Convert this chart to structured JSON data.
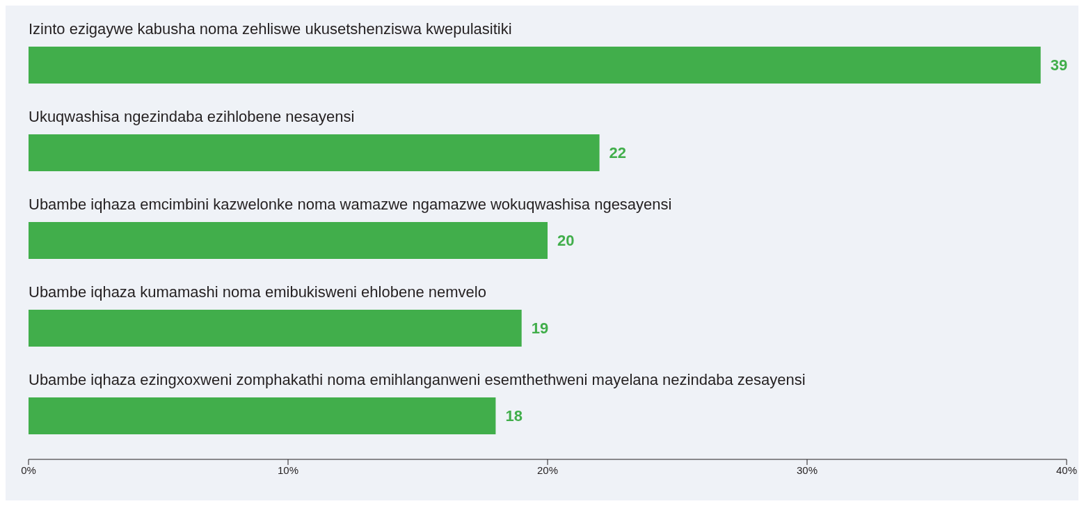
{
  "chart_data": {
    "type": "bar",
    "orientation": "horizontal",
    "categories": [
      "Izinto ezigaywe kabusha noma zehliswe ukusetshenziswa kwepulasitiki",
      "Ukuqwashisa ngezindaba ezihlobene nesayensi",
      "Ubambe iqhaza emcimbini kazwelonke noma wamazwe ngamazwe wokuqwashisa ngesayensi",
      "Ubambe iqhaza kumamashi noma emibukisweni ehlobene nemvelo",
      "Ubambe iqhaza ezingxoxweni zomphakathi noma emihlanganweni esemthethweni mayelana nezindaba zesayensi"
    ],
    "values": [
      39,
      22,
      20,
      19,
      18
    ],
    "color": "#41ae4b",
    "xlim": [
      0,
      40
    ],
    "xticks": [
      {
        "value": 0,
        "label": "0%"
      },
      {
        "value": 10,
        "label": "10%"
      },
      {
        "value": 20,
        "label": "20%"
      },
      {
        "value": 30,
        "label": "30%"
      },
      {
        "value": 40,
        "label": "40%"
      }
    ],
    "data_labels": true,
    "grid": false,
    "legend": false
  }
}
